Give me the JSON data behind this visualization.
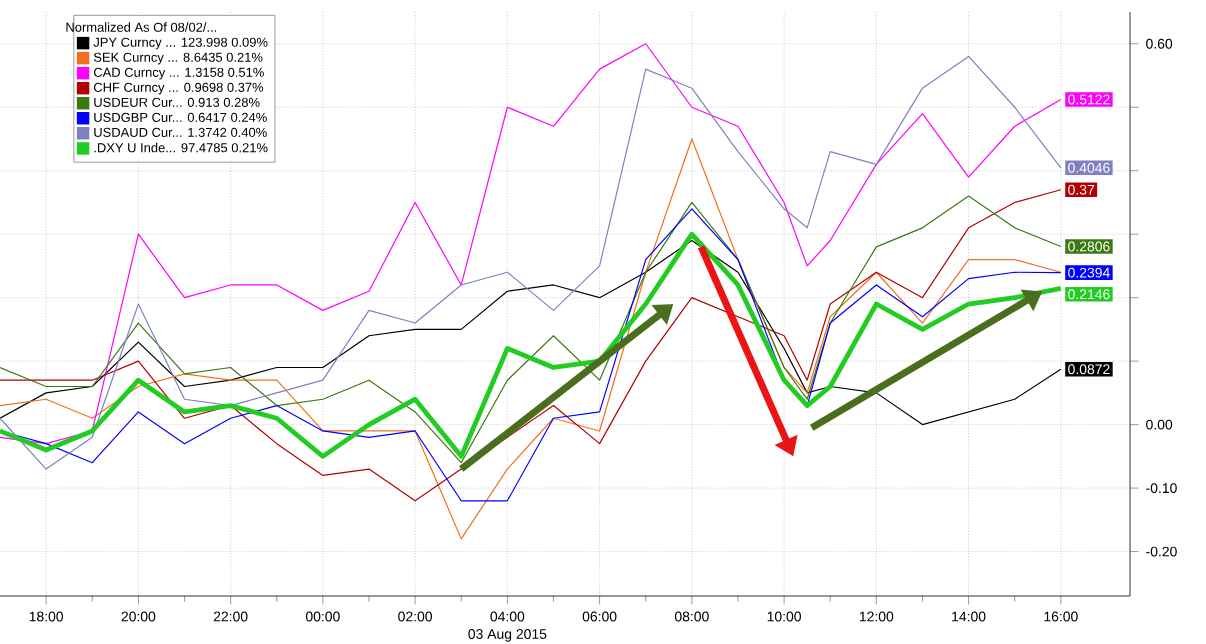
{
  "chart_data": {
    "type": "line",
    "xlabel": "03 Aug 2015",
    "legend_title": "Normalized As Of 08/02/...",
    "x": [
      "2015-08-02T17:00",
      "2015-08-02T18:00",
      "2015-08-02T19:00",
      "2015-08-02T20:00",
      "2015-08-02T21:00",
      "2015-08-02T22:00",
      "2015-08-02T23:00",
      "2015-08-03T00:00",
      "2015-08-03T01:00",
      "2015-08-03T02:00",
      "2015-08-03T03:00",
      "2015-08-03T04:00",
      "2015-08-03T05:00",
      "2015-08-03T06:00",
      "2015-08-03T07:00",
      "2015-08-03T08:00",
      "2015-08-03T09:00",
      "2015-08-03T10:00",
      "2015-08-03T10:30",
      "2015-08-03T11:00",
      "2015-08-03T12:00",
      "2015-08-03T13:00",
      "2015-08-03T14:00",
      "2015-08-03T15:00",
      "2015-08-03T16:00"
    ],
    "xlim": [
      "2015-08-02T17:00",
      "2015-08-03T17:30"
    ],
    "ylim": [
      -0.27,
      0.65
    ],
    "xticks": [
      {
        "value": "2015-08-02T18:00",
        "label": "18:00"
      },
      {
        "value": "2015-08-02T20:00",
        "label": "20:00"
      },
      {
        "value": "2015-08-02T22:00",
        "label": "22:00"
      },
      {
        "value": "2015-08-03T00:00",
        "label": "00:00"
      },
      {
        "value": "2015-08-03T02:00",
        "label": "02:00"
      },
      {
        "value": "2015-08-03T04:00",
        "label": "04:00"
      },
      {
        "value": "2015-08-03T06:00",
        "label": "06:00"
      },
      {
        "value": "2015-08-03T08:00",
        "label": "08:00"
      },
      {
        "value": "2015-08-03T10:00",
        "label": "10:00"
      },
      {
        "value": "2015-08-03T12:00",
        "label": "12:00"
      },
      {
        "value": "2015-08-03T14:00",
        "label": "14:00"
      },
      {
        "value": "2015-08-03T16:00",
        "label": "16:00"
      }
    ],
    "yticks": [
      {
        "value": -0.2,
        "label": "-0.20"
      },
      {
        "value": -0.1,
        "label": "-0.10"
      },
      {
        "value": 0,
        "label": "0.00"
      },
      {
        "value": 0.1,
        "label": null
      },
      {
        "value": 0.2,
        "label": null
      },
      {
        "value": 0.3,
        "label": null
      },
      {
        "value": 0.4,
        "label": null
      },
      {
        "value": 0.5,
        "label": null
      },
      {
        "value": 0.6,
        "label": "0.60"
      }
    ],
    "grid": true,
    "legend": "top left",
    "series": [
      {
        "name": "JPY Curncy ... 123.998 0.09%",
        "color": "#000000",
        "values": [
          0.01,
          0.05,
          0.06,
          0.13,
          0.06,
          0.07,
          0.09,
          0.09,
          0.14,
          0.15,
          0.15,
          0.21,
          0.22,
          0.2,
          0.24,
          0.29,
          0.24,
          0.12,
          0.05,
          0.06,
          0.05,
          0.0,
          0.02,
          0.04,
          0.0872
        ],
        "value_labels": [
          null,
          null,
          null,
          null,
          null,
          null,
          null,
          null,
          null,
          null,
          null,
          null,
          null,
          null,
          null,
          null,
          null,
          null,
          null,
          null,
          null,
          null,
          null,
          null,
          "0.0872"
        ]
      },
      {
        "name": "SEK Curncy ... 8.6435 0.21%",
        "color": "#f07020",
        "values": [
          0.03,
          0.04,
          0.01,
          0.06,
          0.08,
          0.07,
          0.07,
          -0.01,
          -0.01,
          -0.01,
          -0.18,
          -0.07,
          0.01,
          -0.01,
          0.24,
          0.45,
          0.26,
          0.09,
          0.05,
          0.17,
          0.24,
          0.16,
          0.26,
          0.26,
          0.24
        ]
      },
      {
        "name": "CAD Curncy ... 1.3158 0.51%",
        "color": "#ff00ff",
        "values": [
          -0.02,
          -0.03,
          -0.01,
          0.3,
          0.2,
          0.22,
          0.22,
          0.18,
          0.21,
          0.35,
          0.22,
          0.5,
          0.47,
          0.56,
          0.6,
          0.5,
          0.47,
          0.35,
          0.25,
          0.29,
          0.41,
          0.49,
          0.39,
          0.47,
          0.5122
        ],
        "value_labels": [
          null,
          null,
          null,
          null,
          null,
          null,
          null,
          null,
          null,
          null,
          null,
          null,
          null,
          null,
          null,
          null,
          null,
          null,
          null,
          null,
          null,
          null,
          null,
          null,
          "0.5122"
        ]
      },
      {
        "name": "CHF Curncy ... 0.9698 0.37%",
        "color": "#b00000",
        "values": [
          0.07,
          0.07,
          0.07,
          0.1,
          0.01,
          0.03,
          -0.03,
          -0.08,
          -0.07,
          -0.12,
          -0.07,
          -0.02,
          0.03,
          -0.03,
          0.1,
          0.2,
          0.17,
          0.14,
          0.07,
          0.19,
          0.24,
          0.2,
          0.31,
          0.35,
          0.37
        ],
        "value_labels": [
          null,
          null,
          null,
          null,
          null,
          null,
          null,
          null,
          null,
          null,
          null,
          null,
          null,
          null,
          null,
          null,
          null,
          null,
          null,
          null,
          null,
          null,
          null,
          null,
          "0.37"
        ]
      },
      {
        "name": "USDEUR Cur... 0.913 0.28%",
        "color": "#3a7a10",
        "values": [
          0.09,
          0.06,
          0.06,
          0.16,
          0.08,
          0.09,
          0.03,
          0.04,
          0.07,
          0.02,
          -0.06,
          0.07,
          0.14,
          0.07,
          0.24,
          0.35,
          0.26,
          0.09,
          0.04,
          0.16,
          0.28,
          0.31,
          0.36,
          0.31,
          0.2806
        ],
        "value_labels": [
          null,
          null,
          null,
          null,
          null,
          null,
          null,
          null,
          null,
          null,
          null,
          null,
          null,
          null,
          null,
          null,
          null,
          null,
          null,
          null,
          null,
          null,
          null,
          null,
          "0.2806"
        ]
      },
      {
        "name": "USDGBP Cur... 0.6417 0.24%",
        "color": "#0000ff",
        "values": [
          -0.01,
          -0.03,
          -0.06,
          0.02,
          -0.03,
          0.01,
          0.03,
          -0.01,
          -0.02,
          -0.01,
          -0.12,
          -0.12,
          0.01,
          0.02,
          0.26,
          0.34,
          0.26,
          0.07,
          0.03,
          0.16,
          0.22,
          0.17,
          0.23,
          0.24,
          0.2394
        ],
        "value_labels": [
          null,
          null,
          null,
          null,
          null,
          null,
          null,
          null,
          null,
          null,
          null,
          null,
          null,
          null,
          null,
          null,
          null,
          null,
          null,
          null,
          null,
          null,
          null,
          null,
          "0.2394"
        ]
      },
      {
        "name": "USDAUD Cur... 1.3742 0.40%",
        "color": "#8080c0",
        "values": [
          0.01,
          -0.07,
          -0.02,
          0.19,
          0.04,
          0.03,
          0.05,
          0.07,
          0.18,
          0.16,
          0.22,
          0.24,
          0.18,
          0.25,
          0.56,
          0.53,
          0.43,
          0.34,
          0.31,
          0.43,
          0.41,
          0.53,
          0.58,
          0.5,
          0.4046
        ],
        "value_labels": [
          null,
          null,
          null,
          null,
          null,
          null,
          null,
          null,
          null,
          null,
          null,
          null,
          null,
          null,
          null,
          null,
          null,
          null,
          null,
          null,
          null,
          null,
          null,
          null,
          "0.4046"
        ]
      },
      {
        "name": ".DXY U Inde... 97.4785 0.21%",
        "color": "#22cc22",
        "values": [
          -0.01,
          -0.04,
          -0.01,
          0.07,
          0.02,
          0.03,
          0.01,
          -0.05,
          0.0,
          0.04,
          -0.05,
          0.12,
          0.09,
          0.1,
          0.19,
          0.3,
          0.22,
          0.07,
          0.03,
          0.06,
          0.19,
          0.15,
          0.19,
          0.2,
          0.2146
        ],
        "value_labels": [
          null,
          null,
          null,
          null,
          null,
          null,
          null,
          null,
          null,
          null,
          null,
          null,
          null,
          null,
          null,
          null,
          null,
          null,
          null,
          null,
          null,
          null,
          null,
          null,
          "0.2146"
        ]
      }
    ]
  }
}
